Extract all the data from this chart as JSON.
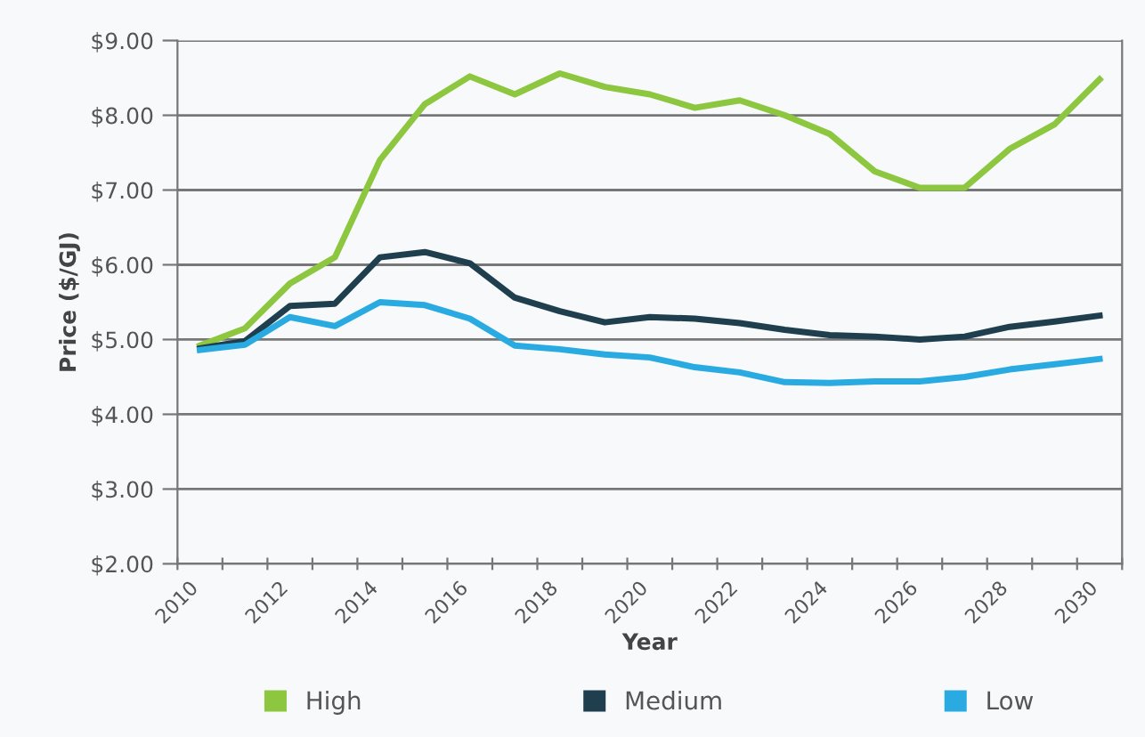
{
  "chart_data": {
    "type": "line",
    "xlabel": "Year",
    "ylabel": "Price ($/GJ)",
    "x": [
      2010.5,
      2011.5,
      2012.5,
      2013.5,
      2014.5,
      2015.5,
      2016.5,
      2017.5,
      2018.5,
      2019.5,
      2020.5,
      2021.5,
      2022.5,
      2023.5,
      2024.5,
      2025.5,
      2026.5,
      2027.5,
      2028.5,
      2029.5,
      2030.5
    ],
    "series": [
      {
        "name": "High",
        "color": "#8dc63f",
        "values": [
          4.92,
          5.15,
          5.75,
          6.1,
          7.4,
          8.15,
          8.52,
          8.28,
          8.56,
          8.38,
          8.28,
          8.1,
          8.2,
          8.0,
          7.75,
          7.25,
          7.03,
          7.03,
          7.55,
          7.88,
          8.48
        ]
      },
      {
        "name": "Medium",
        "color": "#1f3f4f",
        "values": [
          4.88,
          4.98,
          5.45,
          5.48,
          6.1,
          6.17,
          6.02,
          5.56,
          5.38,
          5.23,
          5.3,
          5.28,
          5.22,
          5.13,
          5.06,
          5.04,
          5.0,
          5.04,
          5.17,
          5.24,
          5.32
        ]
      },
      {
        "name": "Low",
        "color": "#29abe2",
        "values": [
          4.86,
          4.93,
          5.3,
          5.18,
          5.5,
          5.46,
          5.28,
          4.92,
          4.87,
          4.8,
          4.76,
          4.63,
          4.56,
          4.43,
          4.42,
          4.44,
          4.44,
          4.5,
          4.6,
          4.67,
          4.74
        ]
      }
    ],
    "xlim": [
      2010,
      2031
    ],
    "xticks": [
      2010,
      {
        "value": 2011,
        "label": null
      },
      2012,
      {
        "value": 2013,
        "label": null
      },
      2014,
      {
        "value": 2015,
        "label": null
      },
      2016,
      {
        "value": 2017,
        "label": null
      },
      2018,
      {
        "value": 2019,
        "label": null
      },
      2020,
      {
        "value": 2021,
        "label": null
      },
      2022,
      {
        "value": 2023,
        "label": null
      },
      2024,
      {
        "value": 2025,
        "label": null
      },
      2026,
      {
        "value": 2027,
        "label": null
      },
      2028,
      {
        "value": 2029,
        "label": null
      },
      2030,
      {
        "value": 2031,
        "label": null
      }
    ],
    "ylim": [
      2,
      9
    ],
    "yticks": [
      {
        "value": 2,
        "label": "$2.00"
      },
      {
        "value": 3,
        "label": "$3.00"
      },
      {
        "value": 4,
        "label": "$4.00"
      },
      {
        "value": 5,
        "label": "$5.00"
      },
      {
        "value": 6,
        "label": "$6.00"
      },
      {
        "value": 7,
        "label": "$7.00"
      },
      {
        "value": 8,
        "label": "$8.00"
      },
      {
        "value": 9,
        "label": "$9.00"
      }
    ],
    "grid": "y",
    "legend": "bottom",
    "marker": "none",
    "line_style": "solid"
  }
}
